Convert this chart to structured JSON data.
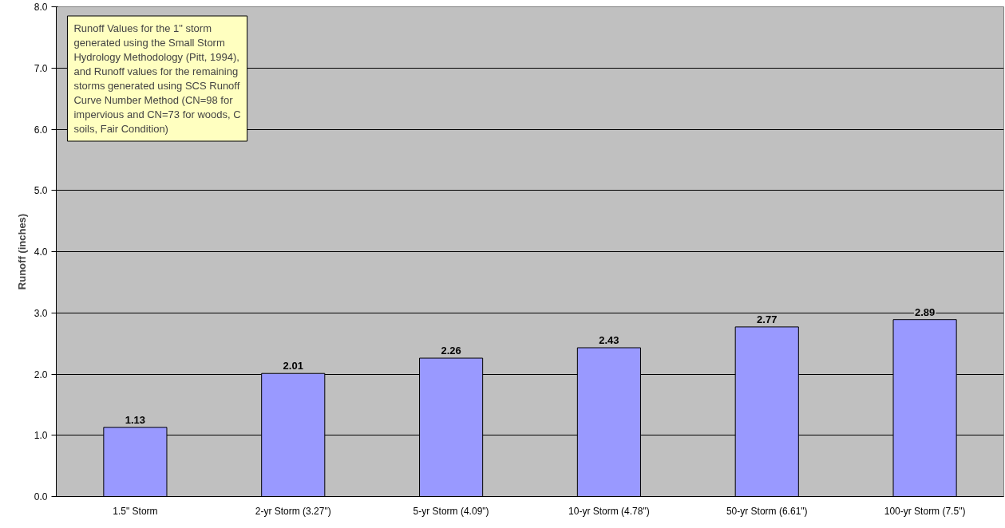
{
  "chart_data": {
    "type": "bar",
    "ylabel": "Runoff (inches)",
    "categories": [
      "1.5\" Storm",
      "2-yr Storm (3.27\")",
      "5-yr Storm (4.09\")",
      "10-yr Storm (4.78\")",
      "50-yr Storm (6.61\")",
      "100-yr Storm (7.5\")"
    ],
    "values": [
      1.13,
      2.01,
      2.26,
      2.43,
      2.77,
      2.89
    ],
    "color": "#9999ff",
    "data_labels": true,
    "ylim": [
      0,
      8
    ],
    "yticks": [
      {
        "value": 0,
        "label": "0.0"
      },
      {
        "value": 1,
        "label": "1.0"
      },
      {
        "value": 2,
        "label": "2.0"
      },
      {
        "value": 3,
        "label": "3.0"
      },
      {
        "value": 4,
        "label": "4.0"
      },
      {
        "value": 5,
        "label": "5.0"
      },
      {
        "value": 6,
        "label": "6.0"
      },
      {
        "value": 7,
        "label": "7.0"
      },
      {
        "value": 8,
        "label": "8.0"
      }
    ],
    "grid": "y",
    "annotations": [
      "Runoff Values for the 1\" storm generated using the Small Storm Hydrology Methodology (Pitt, 1994), and Runoff values for the remaining storms generated using SCS Runoff Curve Number Method (CN=98 for impervious and CN=73 for woods, C soils, Fair Condition)"
    ]
  }
}
